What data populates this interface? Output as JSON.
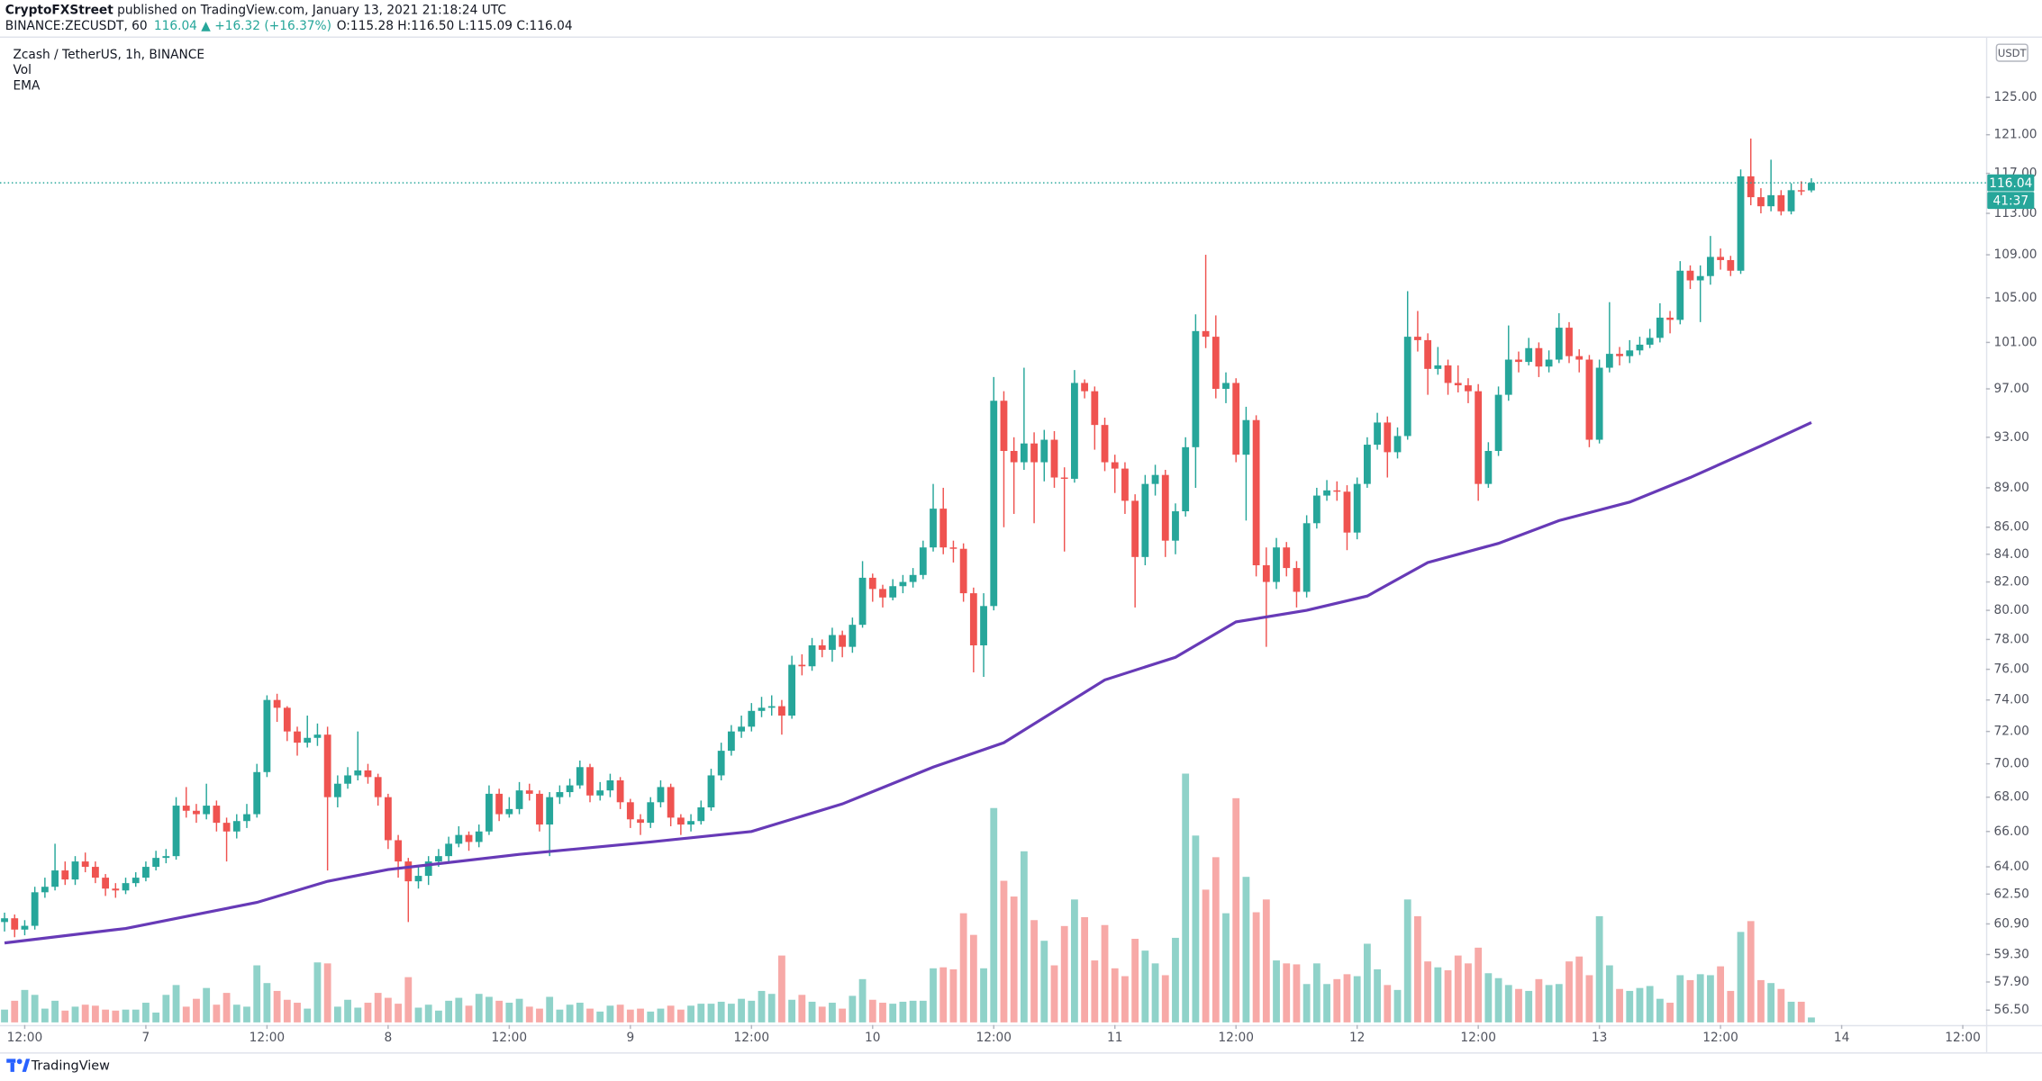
{
  "header": {
    "publisher": "CryptoFXStreet",
    "published": "published on TradingView.com, January 13, 2021 21:18:24 UTC",
    "symbol": "BINANCE:ZECUSDT, 60",
    "change": "116.04 ▲ +16.32 (+16.37%)",
    "ohlc": "O:115.28 H:116.50 L:115.09 C:116.04"
  },
  "footer": {
    "brand": "TradingView"
  },
  "chart_data": {
    "type": "candlestick",
    "title": "Zcash / TetherUS, 1h, BINANCE",
    "y_axis_unit": "USDT",
    "countdown": "41:37",
    "up_color": "#26a69a",
    "down_color": "#ef5350",
    "log_scale": true,
    "grid": false,
    "xlim": [
      -0.45,
      196.3
    ],
    "xticks": [
      {
        "value": 2,
        "label": "12:00"
      },
      {
        "value": 14,
        "label": "7"
      },
      {
        "value": 26,
        "label": "12:00"
      },
      {
        "value": 38,
        "label": "8"
      },
      {
        "value": 50,
        "label": "12:00"
      },
      {
        "value": 62,
        "label": "9"
      },
      {
        "value": 74,
        "label": "12:00"
      },
      {
        "value": 86,
        "label": "10"
      },
      {
        "value": 98,
        "label": "12:00"
      },
      {
        "value": 110,
        "label": "11"
      },
      {
        "value": 122,
        "label": "12:00"
      },
      {
        "value": 134,
        "label": "12"
      },
      {
        "value": 146,
        "label": "12:00"
      },
      {
        "value": 158,
        "label": "13"
      },
      {
        "value": 170,
        "label": "12:00"
      },
      {
        "value": 182,
        "label": "14"
      },
      {
        "value": 194,
        "label": "12:00"
      }
    ],
    "ylim": [
      55.9,
      131.5
    ],
    "yticks": [
      {
        "value": 56.5,
        "label": "56.50"
      },
      {
        "value": 57.9,
        "label": "57.90"
      },
      {
        "value": 59.3,
        "label": "59.30"
      },
      {
        "value": 60.9,
        "label": "60.90"
      },
      {
        "value": 62.5,
        "label": "62.50"
      },
      {
        "value": 64,
        "label": "64.00"
      },
      {
        "value": 66,
        "label": "66.00"
      },
      {
        "value": 68,
        "label": "68.00"
      },
      {
        "value": 70,
        "label": "70.00"
      },
      {
        "value": 72,
        "label": "72.00"
      },
      {
        "value": 74,
        "label": "74.00"
      },
      {
        "value": 76,
        "label": "76.00"
      },
      {
        "value": 78,
        "label": "78.00"
      },
      {
        "value": 80,
        "label": "80.00"
      },
      {
        "value": 82,
        "label": "82.00"
      },
      {
        "value": 84,
        "label": "84.00"
      },
      {
        "value": 86,
        "label": "86.00"
      },
      {
        "value": 89,
        "label": "89.00"
      },
      {
        "value": 93,
        "label": "93.00"
      },
      {
        "value": 97,
        "label": "97.00"
      },
      {
        "value": 101,
        "label": "101.00"
      },
      {
        "value": 105,
        "label": "105.00"
      },
      {
        "value": 109,
        "label": "109.00"
      },
      {
        "value": 113,
        "label": "113.00"
      },
      {
        "value": 117,
        "label": "117.00"
      },
      {
        "value": 121,
        "label": "121.00"
      },
      {
        "value": 125,
        "label": "125.00"
      }
    ],
    "open": [
      61.0,
      61.2,
      60.6,
      60.8,
      62.6,
      62.9,
      63.8,
      63.3,
      64.3,
      64.0,
      63.4,
      62.8,
      62.7,
      63.1,
      63.4,
      64.0,
      64.5,
      64.6,
      67.5,
      67.2,
      67.0,
      67.5,
      66.5,
      66.0,
      66.6,
      67.0,
      69.5,
      74.0,
      73.5,
      72.0,
      71.3,
      71.6,
      71.8,
      68.0,
      68.8,
      69.3,
      69.6,
      69.2,
      68.0,
      65.5,
      64.3,
      63.2,
      63.5,
      64.3,
      64.6,
      65.3,
      65.8,
      65.4,
      66.0,
      68.2,
      67.0,
      67.3,
      68.4,
      68.2,
      66.4,
      68.0,
      68.3,
      68.7,
      69.8,
      68.1,
      68.4,
      69.0,
      67.7,
      66.7,
      66.5,
      67.7,
      68.6,
      66.8,
      66.4,
      66.6,
      67.4,
      69.3,
      70.8,
      72.0,
      72.3,
      73.3,
      73.5,
      73.6,
      73.0,
      76.3,
      76.2,
      77.6,
      77.3,
      78.3,
      77.5,
      79.0,
      82.3,
      81.5,
      80.9,
      81.7,
      82.0,
      82.5,
      84.5,
      87.4,
      84.5,
      84.4,
      81.2,
      77.6,
      80.3,
      96.0,
      91.9,
      91.0,
      92.5,
      91.0,
      92.8,
      89.8,
      89.7,
      97.5,
      96.8,
      94.0,
      91.0,
      90.5,
      88.0,
      83.8,
      89.3,
      90.0,
      85.0,
      87.2,
      92.2,
      102.0,
      101.5,
      97.0,
      97.5,
      91.6,
      94.4,
      83.2,
      82.0,
      84.5,
      83.0,
      81.3,
      86.3,
      88.4,
      88.8,
      88.7,
      85.6,
      89.3,
      92.4,
      94.2,
      91.8,
      93.1,
      101.5,
      101.2,
      98.7,
      99.0,
      97.5,
      97.3,
      96.8,
      89.3,
      91.9,
      96.5,
      99.5,
      99.3,
      100.5,
      98.9,
      99.5,
      102.3,
      99.8,
      99.5,
      92.8,
      98.8,
      100.0,
      99.8,
      100.3,
      100.8,
      101.4,
      103.2,
      103.0,
      107.5,
      106.6,
      107.0,
      108.8,
      108.5,
      107.5,
      116.7,
      114.6,
      113.7,
      114.8,
      113.2,
      115.3,
      115.28
    ],
    "high": [
      61.5,
      61.4,
      61.1,
      62.9,
      63.4,
      65.3,
      64.3,
      64.6,
      64.8,
      64.3,
      63.6,
      63.1,
      63.4,
      63.7,
      64.3,
      64.9,
      65.0,
      68.0,
      68.6,
      67.6,
      68.8,
      67.8,
      66.8,
      67.0,
      67.6,
      70.0,
      74.3,
      74.4,
      73.6,
      72.3,
      73.0,
      72.5,
      72.3,
      69.3,
      69.8,
      72.0,
      70.0,
      69.4,
      68.2,
      65.8,
      64.5,
      64.0,
      64.6,
      65.0,
      65.7,
      66.3,
      66.0,
      66.4,
      68.7,
      68.5,
      68.0,
      68.9,
      68.8,
      68.4,
      68.3,
      68.7,
      69.1,
      70.2,
      70.0,
      68.9,
      69.4,
      69.2,
      67.9,
      67.0,
      68.0,
      69.0,
      68.8,
      67.0,
      67.0,
      67.8,
      69.7,
      71.3,
      72.4,
      73.0,
      73.8,
      74.2,
      74.3,
      74.0,
      76.9,
      77.0,
      78.1,
      78.0,
      78.8,
      78.6,
      79.5,
      83.5,
      82.6,
      81.8,
      82.2,
      82.5,
      83.0,
      85.0,
      89.3,
      89.0,
      85.0,
      84.8,
      81.6,
      81.2,
      98.0,
      96.8,
      93.0,
      98.8,
      93.4,
      93.6,
      93.5,
      90.6,
      98.6,
      97.8,
      97.2,
      94.6,
      91.6,
      91.0,
      88.5,
      90.0,
      90.8,
      90.4,
      87.8,
      93.0,
      103.5,
      109.0,
      103.4,
      98.4,
      97.9,
      95.5,
      94.8,
      84.5,
      85.2,
      84.9,
      83.5,
      86.9,
      89.0,
      89.6,
      89.5,
      89.2,
      89.8,
      93.0,
      95.0,
      94.7,
      93.8,
      105.6,
      103.8,
      101.8,
      100.6,
      99.5,
      99.0,
      97.9,
      97.4,
      92.6,
      97.2,
      102.5,
      100.2,
      101.4,
      101.0,
      100.3,
      103.6,
      102.8,
      100.4,
      99.9,
      99.5,
      104.6,
      100.6,
      101.2,
      101.5,
      102.2,
      104.5,
      103.8,
      108.4,
      108.0,
      108.0,
      110.8,
      109.6,
      108.9,
      117.4,
      120.6,
      115.5,
      118.4,
      115.3,
      116.0,
      116.2,
      116.5
    ],
    "low": [
      60.5,
      60.2,
      60.3,
      60.6,
      62.3,
      62.7,
      63.0,
      63.0,
      63.7,
      63.1,
      62.4,
      62.3,
      62.5,
      62.9,
      63.2,
      63.8,
      64.2,
      64.4,
      66.8,
      66.5,
      66.7,
      66.0,
      64.3,
      65.6,
      66.2,
      66.8,
      69.2,
      72.6,
      71.4,
      70.5,
      71.0,
      71.1,
      63.8,
      67.4,
      68.5,
      69.0,
      68.8,
      67.5,
      65.0,
      63.4,
      61.0,
      62.8,
      63.0,
      64.0,
      64.3,
      65.1,
      64.9,
      65.1,
      65.8,
      66.6,
      66.8,
      67.0,
      67.8,
      66.0,
      64.6,
      67.6,
      68.0,
      68.5,
      67.7,
      67.8,
      68.0,
      67.3,
      66.2,
      65.8,
      66.2,
      67.4,
      66.3,
      65.8,
      66.0,
      66.4,
      67.2,
      69.0,
      70.5,
      71.6,
      72.0,
      72.9,
      73.0,
      71.8,
      72.8,
      75.6,
      75.9,
      76.8,
      76.5,
      76.8,
      77.1,
      78.8,
      80.6,
      80.2,
      80.7,
      81.2,
      81.6,
      82.2,
      84.2,
      84.0,
      83.4,
      80.6,
      75.8,
      75.5,
      80.0,
      86.0,
      87.0,
      90.4,
      86.3,
      89.5,
      89.0,
      84.2,
      89.4,
      96.2,
      92.0,
      90.3,
      88.6,
      87.0,
      80.2,
      83.2,
      88.4,
      83.8,
      84.0,
      86.8,
      89.0,
      100.5,
      96.2,
      95.8,
      91.0,
      86.5,
      82.4,
      77.5,
      81.5,
      82.4,
      80.2,
      80.9,
      85.9,
      88.0,
      88.0,
      84.3,
      85.1,
      89.0,
      92.0,
      89.8,
      91.3,
      92.8,
      100.2,
      96.5,
      98.2,
      96.5,
      96.7,
      95.8,
      88.0,
      89.0,
      91.5,
      96.0,
      98.4,
      99.0,
      98.0,
      98.4,
      99.2,
      99.2,
      98.4,
      92.2,
      92.5,
      98.4,
      99.0,
      99.2,
      99.9,
      100.5,
      101.0,
      101.8,
      102.6,
      105.8,
      102.8,
      106.2,
      107.6,
      107.0,
      107.2,
      113.8,
      113.0,
      113.2,
      112.8,
      112.9,
      114.8,
      115.09
    ],
    "close": [
      61.2,
      60.6,
      60.8,
      62.6,
      62.9,
      63.8,
      63.3,
      64.3,
      64.0,
      63.4,
      62.8,
      62.7,
      63.1,
      63.4,
      64.0,
      64.5,
      64.6,
      67.5,
      67.2,
      67.0,
      67.5,
      66.5,
      66.0,
      66.6,
      67.0,
      69.5,
      74.0,
      73.5,
      72.0,
      71.3,
      71.6,
      71.8,
      68.0,
      68.8,
      69.3,
      69.6,
      69.2,
      68.0,
      65.5,
      64.3,
      63.2,
      63.5,
      64.3,
      64.6,
      65.3,
      65.8,
      65.4,
      66.0,
      68.2,
      67.0,
      67.3,
      68.4,
      68.2,
      66.4,
      68.0,
      68.3,
      68.7,
      69.8,
      68.1,
      68.4,
      69.0,
      67.7,
      66.7,
      66.5,
      67.7,
      68.6,
      66.8,
      66.4,
      66.6,
      67.4,
      69.3,
      70.8,
      72.0,
      72.3,
      73.3,
      73.5,
      73.6,
      73.0,
      76.3,
      76.2,
      77.6,
      77.3,
      78.3,
      77.5,
      79.0,
      82.3,
      81.5,
      80.9,
      81.7,
      82.0,
      82.5,
      84.5,
      87.4,
      84.5,
      84.4,
      81.2,
      77.6,
      80.3,
      96.0,
      91.9,
      91.0,
      92.5,
      91.0,
      92.8,
      89.8,
      89.7,
      97.5,
      96.8,
      94.0,
      91.0,
      90.5,
      88.0,
      83.8,
      89.3,
      90.0,
      85.0,
      87.2,
      92.2,
      102.0,
      101.5,
      97.0,
      97.5,
      91.6,
      94.4,
      83.2,
      82.0,
      84.5,
      83.0,
      81.3,
      86.3,
      88.4,
      88.8,
      88.7,
      85.6,
      89.3,
      92.4,
      94.2,
      91.8,
      93.1,
      101.5,
      101.2,
      98.7,
      99.0,
      97.5,
      97.3,
      96.8,
      89.3,
      91.9,
      96.5,
      99.5,
      99.3,
      100.5,
      98.9,
      99.5,
      102.3,
      99.8,
      99.5,
      92.8,
      98.8,
      100.0,
      99.8,
      100.3,
      100.8,
      101.4,
      103.2,
      103.0,
      107.5,
      106.6,
      107.0,
      108.8,
      108.5,
      107.5,
      116.7,
      114.6,
      113.7,
      114.8,
      113.2,
      115.3,
      115.28,
      116.04
    ],
    "y2lim": [
      0,
      100
    ],
    "volume": {
      "name": "Vol",
      "up_color": "#8fd2c9",
      "down_color": "#f7a9a7",
      "values": [
        1.3,
        2.2,
        3.3,
        2.8,
        1.4,
        2.2,
        1.2,
        1.6,
        1.8,
        1.7,
        1.3,
        1.2,
        1.3,
        1.3,
        2.0,
        1.0,
        2.8,
        3.8,
        1.6,
        2.4,
        3.5,
        1.8,
        3.0,
        1.8,
        1.6,
        5.8,
        4.0,
        3.2,
        2.3,
        2.0,
        1.4,
        6.1,
        6.0,
        1.6,
        2.3,
        1.5,
        2.0,
        3.0,
        2.5,
        1.9,
        4.6,
        1.5,
        1.8,
        1.2,
        2.2,
        2.5,
        1.7,
        2.9,
        2.6,
        2.2,
        2.0,
        2.4,
        1.6,
        1.4,
        2.6,
        1.3,
        1.8,
        2.0,
        1.4,
        1.1,
        1.7,
        1.8,
        1.3,
        1.4,
        1.1,
        1.4,
        1.7,
        1.3,
        1.7,
        1.9,
        1.9,
        2.1,
        1.9,
        2.4,
        2.2,
        3.2,
        2.9,
        6.8,
        2.3,
        2.8,
        2.1,
        1.6,
        2.0,
        1.4,
        2.7,
        4.4,
        2.3,
        2.0,
        1.9,
        2.1,
        2.2,
        2.2,
        5.5,
        5.6,
        5.4,
        11.1,
        8.9,
        5.5,
        21.8,
        14.4,
        12.8,
        17.4,
        10.4,
        8.3,
        5.8,
        9.8,
        12.5,
        10.7,
        6.3,
        9.9,
        5.5,
        4.7,
        8.5,
        7.3,
        6.0,
        4.8,
        8.6,
        25.3,
        19.0,
        13.5,
        16.8,
        11.1,
        22.8,
        14.8,
        11.2,
        12.5,
        6.3,
        6.0,
        5.9,
        3.9,
        6.0,
        3.9,
        4.4,
        4.9,
        4.7,
        8.0,
        5.4,
        3.8,
        3.3,
        12.5,
        10.8,
        6.2,
        5.6,
        5.3,
        6.8,
        6.0,
        7.6,
        5.0,
        4.5,
        3.8,
        3.4,
        3.2,
        4.4,
        3.8,
        3.9,
        6.2,
        6.7,
        4.8,
        10.8,
        5.8,
        3.4,
        3.2,
        3.5,
        3.7,
        2.4,
        2.0,
        4.8,
        4.3,
        4.9,
        4.8,
        5.7,
        3.2,
        9.2,
        10.3,
        4.3,
        4.0,
        3.4,
        2.1,
        2.1,
        0.5
      ]
    },
    "ema": {
      "name": "EMA",
      "color": "#673ab7",
      "x": [
        0,
        12,
        25,
        32,
        38,
        51,
        64,
        74,
        83,
        92,
        99,
        109,
        116,
        122,
        129,
        135,
        141,
        148,
        154,
        161,
        167,
        174,
        179
      ],
      "values": [
        59.9,
        60.66,
        62.05,
        63.2,
        63.85,
        64.7,
        65.4,
        66.0,
        67.6,
        69.8,
        71.3,
        75.3,
        76.8,
        79.2,
        80.0,
        81.0,
        83.4,
        84.8,
        86.5,
        87.9,
        89.8,
        92.3,
        94.2
      ]
    }
  }
}
